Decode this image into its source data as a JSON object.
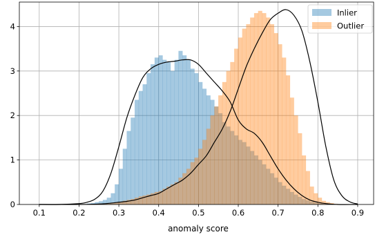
{
  "chart_data": {
    "type": "histogram",
    "xlabel": "anomaly score",
    "ylabel": "",
    "title": "",
    "xlim": [
      0.05,
      0.94
    ],
    "ylim": [
      0,
      4.55
    ],
    "xticks": [
      0.1,
      0.2,
      0.3,
      0.4,
      0.5,
      0.6,
      0.7,
      0.8,
      0.9
    ],
    "xtick_labels": [
      "0.1",
      "0.2",
      "0.3",
      "0.4",
      "0.5",
      "0.6",
      "0.7",
      "0.8",
      "0.9"
    ],
    "yticks": [
      0,
      1,
      2,
      3,
      4
    ],
    "ytick_labels": [
      "0",
      "1",
      "2",
      "3",
      "4"
    ],
    "grid": true,
    "legend_position": "top-right",
    "bin_width": 0.01,
    "series": [
      {
        "name": "Inlier",
        "color": "#1f77b4",
        "bin_centers": [
          0.225,
          0.235,
          0.245,
          0.255,
          0.265,
          0.275,
          0.285,
          0.295,
          0.305,
          0.315,
          0.325,
          0.335,
          0.345,
          0.355,
          0.365,
          0.375,
          0.385,
          0.395,
          0.405,
          0.415,
          0.425,
          0.435,
          0.445,
          0.455,
          0.465,
          0.475,
          0.485,
          0.495,
          0.505,
          0.515,
          0.525,
          0.535,
          0.545,
          0.555,
          0.565,
          0.575,
          0.585,
          0.595,
          0.605,
          0.615,
          0.625,
          0.635,
          0.645,
          0.655,
          0.665,
          0.675,
          0.685,
          0.695,
          0.705,
          0.715,
          0.725,
          0.735,
          0.745,
          0.755,
          0.765,
          0.775,
          0.785,
          0.795,
          0.805,
          0.815,
          0.825
        ],
        "values": [
          0.02,
          0.03,
          0.05,
          0.07,
          0.1,
          0.15,
          0.25,
          0.45,
          0.8,
          1.25,
          1.65,
          1.95,
          2.35,
          2.55,
          2.7,
          2.95,
          3.15,
          3.3,
          3.35,
          3.25,
          3.2,
          3.0,
          3.25,
          3.45,
          3.35,
          3.25,
          3.05,
          2.95,
          2.75,
          2.6,
          2.45,
          2.35,
          2.2,
          2.05,
          1.85,
          1.75,
          1.65,
          1.55,
          1.45,
          1.4,
          1.3,
          1.2,
          1.1,
          1.0,
          0.9,
          0.8,
          0.7,
          0.6,
          0.5,
          0.42,
          0.35,
          0.28,
          0.22,
          0.17,
          0.12,
          0.09,
          0.06,
          0.04,
          0.03,
          0.02,
          0.01
        ]
      },
      {
        "name": "Outlier",
        "color": "#ff7f0e",
        "bin_centers": [
          0.235,
          0.245,
          0.255,
          0.265,
          0.275,
          0.285,
          0.295,
          0.305,
          0.315,
          0.325,
          0.335,
          0.345,
          0.355,
          0.365,
          0.375,
          0.385,
          0.395,
          0.405,
          0.415,
          0.425,
          0.435,
          0.445,
          0.455,
          0.465,
          0.475,
          0.485,
          0.495,
          0.505,
          0.515,
          0.525,
          0.535,
          0.545,
          0.555,
          0.565,
          0.575,
          0.585,
          0.595,
          0.605,
          0.615,
          0.625,
          0.635,
          0.645,
          0.655,
          0.665,
          0.675,
          0.685,
          0.695,
          0.705,
          0.715,
          0.725,
          0.735,
          0.745,
          0.755,
          0.765,
          0.775,
          0.785,
          0.795,
          0.805,
          0.815,
          0.825,
          0.835,
          0.845
        ],
        "values": [
          0.01,
          0.01,
          0.02,
          0.02,
          0.03,
          0.04,
          0.05,
          0.06,
          0.08,
          0.1,
          0.12,
          0.15,
          0.18,
          0.2,
          0.22,
          0.25,
          0.28,
          0.3,
          0.35,
          0.4,
          0.45,
          0.5,
          0.6,
          0.7,
          0.8,
          0.95,
          1.05,
          1.25,
          1.45,
          1.7,
          2.0,
          2.2,
          2.45,
          2.75,
          3.0,
          3.2,
          3.5,
          3.75,
          3.95,
          4.05,
          4.2,
          4.3,
          4.35,
          4.3,
          4.2,
          4.05,
          3.85,
          3.6,
          3.3,
          2.9,
          2.4,
          2.0,
          1.6,
          1.1,
          0.75,
          0.4,
          0.25,
          0.15,
          0.08,
          0.05,
          0.03,
          0.01
        ]
      }
    ],
    "kde": [
      {
        "series": "Inlier",
        "x": [
          0.1,
          0.15,
          0.2,
          0.22,
          0.24,
          0.26,
          0.28,
          0.3,
          0.32,
          0.34,
          0.36,
          0.38,
          0.4,
          0.42,
          0.44,
          0.46,
          0.48,
          0.5,
          0.52,
          0.54,
          0.56,
          0.58,
          0.6,
          0.62,
          0.64,
          0.66,
          0.68,
          0.7,
          0.72,
          0.74,
          0.76,
          0.78,
          0.8,
          0.82,
          0.85,
          0.9
        ],
        "y": [
          0.0,
          0.0,
          0.02,
          0.05,
          0.12,
          0.3,
          0.7,
          1.3,
          1.95,
          2.45,
          2.85,
          3.05,
          3.15,
          3.2,
          3.22,
          3.25,
          3.25,
          3.15,
          2.95,
          2.75,
          2.55,
          2.3,
          1.9,
          1.7,
          1.6,
          1.4,
          1.1,
          0.8,
          0.55,
          0.35,
          0.2,
          0.1,
          0.05,
          0.02,
          0.0,
          0.0
        ]
      },
      {
        "series": "Outlier",
        "x": [
          0.1,
          0.15,
          0.2,
          0.25,
          0.28,
          0.3,
          0.32,
          0.34,
          0.36,
          0.38,
          0.4,
          0.42,
          0.44,
          0.46,
          0.48,
          0.5,
          0.52,
          0.54,
          0.56,
          0.58,
          0.6,
          0.62,
          0.64,
          0.66,
          0.68,
          0.7,
          0.72,
          0.74,
          0.76,
          0.78,
          0.8,
          0.82,
          0.84,
          0.86,
          0.88,
          0.9
        ],
        "y": [
          0.0,
          0.0,
          0.0,
          0.01,
          0.03,
          0.05,
          0.07,
          0.1,
          0.15,
          0.2,
          0.25,
          0.35,
          0.45,
          0.55,
          0.7,
          0.9,
          1.1,
          1.4,
          1.7,
          2.1,
          2.6,
          3.1,
          3.5,
          3.85,
          4.15,
          4.3,
          4.38,
          4.25,
          3.9,
          3.2,
          2.3,
          1.3,
          0.55,
          0.2,
          0.06,
          0.01
        ]
      }
    ]
  }
}
